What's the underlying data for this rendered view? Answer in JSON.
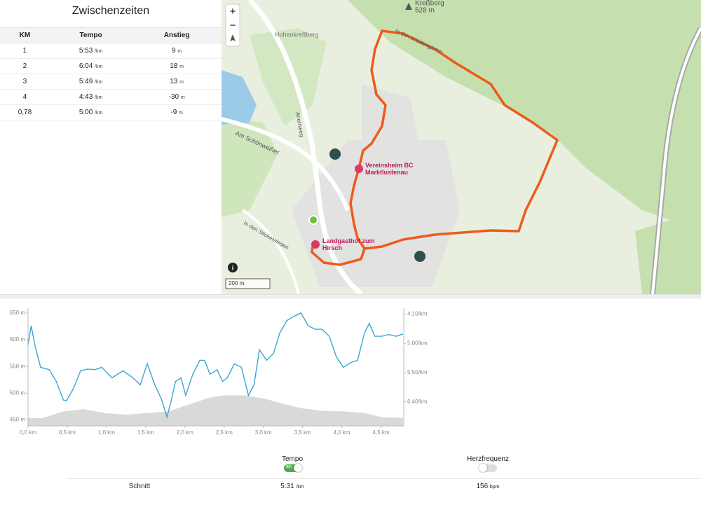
{
  "splits": {
    "title": "Zwischenzeiten",
    "headers": [
      "KM",
      "Tempo",
      "Anstieg"
    ],
    "rows": [
      {
        "km": "1",
        "tempo": "5:53",
        "tempo_unit": "/km",
        "climb": "9",
        "climb_unit": "m"
      },
      {
        "km": "2",
        "tempo": "6:04",
        "tempo_unit": "/km",
        "climb": "18",
        "climb_unit": "m"
      },
      {
        "km": "3",
        "tempo": "5:49",
        "tempo_unit": "/km",
        "climb": "13",
        "climb_unit": "m"
      },
      {
        "km": "4",
        "tempo": "4:43",
        "tempo_unit": "/km",
        "climb": "-30",
        "climb_unit": "m"
      },
      {
        "km": "0,78",
        "tempo": "5:00",
        "tempo_unit": "/km",
        "climb": "-9",
        "climb_unit": "m"
      }
    ]
  },
  "map": {
    "zoom_in": "+",
    "zoom_out": "−",
    "peak_name": "Kreßberg",
    "peak_height": "528 m",
    "labels": [
      "Hohenkreßberg",
      "Am Schönweiher",
      "Ahornweg",
      "In den Weidengärten",
      "In den Stickelwiesen"
    ],
    "pois": [
      "Vereinsheim BC Marktlustenau",
      "Landgasthof zum Hirsch"
    ],
    "scale": "200 m",
    "info": "i"
  },
  "chart_data": {
    "type": "line",
    "x": [
      0,
      0.04,
      0.09,
      0.16,
      0.27,
      0.36,
      0.45,
      0.49,
      0.58,
      0.67,
      0.76,
      0.85,
      0.94,
      1.07,
      1.21,
      1.34,
      1.43,
      1.52,
      1.61,
      1.7,
      1.77,
      1.83,
      1.88,
      1.95,
      2.01,
      2.1,
      2.19,
      2.25,
      2.32,
      2.41,
      2.48,
      2.54,
      2.63,
      2.72,
      2.81,
      2.88,
      2.95,
      3.04,
      3.13,
      3.21,
      3.3,
      3.39,
      3.48,
      3.57,
      3.66,
      3.75,
      3.84,
      3.93,
      4.02,
      4.11,
      4.2,
      4.29,
      4.35,
      4.42,
      4.51,
      4.6,
      4.69,
      4.78
    ],
    "series": [
      {
        "name": "Tempo",
        "color": "#3aa6d0",
        "axis": "y2",
        "values": [
          303,
          270,
          305,
          341,
          345,
          365,
          397,
          398,
          377,
          347,
          344,
          345,
          341,
          359,
          347,
          359,
          371,
          335,
          369,
          395,
          426,
          395,
          365,
          359,
          389,
          353,
          329,
          329,
          353,
          345,
          365,
          359,
          335,
          341,
          389,
          371,
          311,
          329,
          317,
          282,
          261,
          254,
          248,
          270,
          276,
          276,
          288,
          323,
          341,
          333,
          329,
          282,
          266,
          288,
          288,
          285,
          288,
          284
        ]
      },
      {
        "color": "#d9d9d9",
        "area": true,
        "x": [
          0,
          0.18,
          0.45,
          0.71,
          0.98,
          1.25,
          1.52,
          1.79,
          2.05,
          2.32,
          2.5,
          2.77,
          3.04,
          3.21,
          3.48,
          3.75,
          4.02,
          4.29,
          4.51,
          4.78
        ],
        "values": [
          454,
          453,
          466,
          470,
          463,
          460,
          463,
          466,
          479,
          492,
          496,
          496,
          489,
          482,
          472,
          467,
          466,
          463,
          455,
          454
        ]
      }
    ],
    "xlim": [
      0,
      4.79
    ],
    "xticks": [
      {
        "value": 0,
        "label": "0,0 km"
      },
      {
        "value": 0.5,
        "label": "0,5 km"
      },
      {
        "value": 1,
        "label": "1,0 km"
      },
      {
        "value": 1.5,
        "label": "1,5 km"
      },
      {
        "value": 2,
        "label": "2,0 km"
      },
      {
        "value": 2.5,
        "label": "2,5 km"
      },
      {
        "value": 3,
        "label": "3,0 km"
      },
      {
        "value": 3.5,
        "label": "3,5 km"
      },
      {
        "value": 4,
        "label": "4,0 km"
      },
      {
        "value": 4.5,
        "label": "4,5 km"
      }
    ],
    "ylim": [
      439,
      659
    ],
    "yticks": [
      {
        "value": 450,
        "label": "450 m"
      },
      {
        "value": 500,
        "label": "500 m"
      },
      {
        "value": 550,
        "label": "550 m"
      },
      {
        "value": 600,
        "label": "600 m"
      },
      {
        "value": 650,
        "label": "650 m"
      }
    ],
    "y2lim": [
      240,
      441
    ],
    "y2_inverted": true,
    "y2ticks": [
      {
        "value": 250,
        "label": "4:10/km"
      },
      {
        "value": 300,
        "label": "5:00/km"
      },
      {
        "value": 350,
        "label": "5:50/km"
      },
      {
        "value": 400,
        "label": "6:40/km"
      }
    ]
  },
  "controls": {
    "heart_rate": "Herzfrequenz",
    "tempo_toggle": "an",
    "average_label": "Schnitt",
    "average_tempo": "5:31",
    "average_tempo_unit": "/km",
    "average_hr": "156",
    "average_hr_unit": "bpm"
  }
}
